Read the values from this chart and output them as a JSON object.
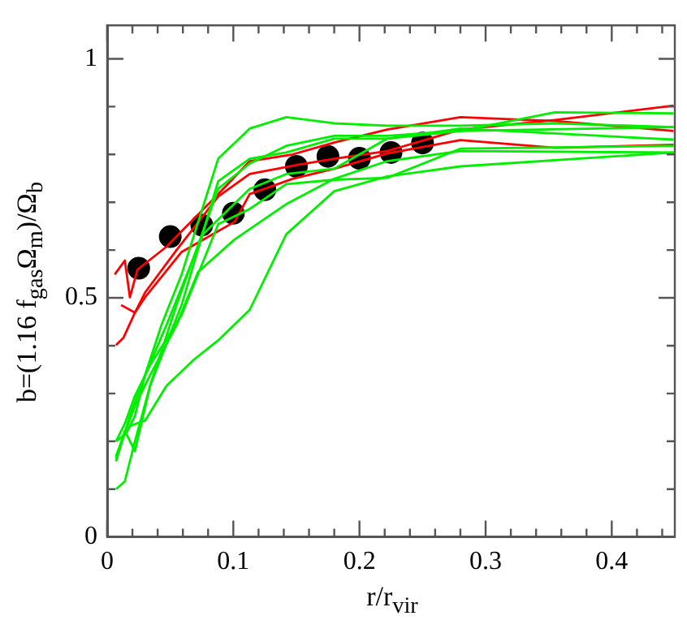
{
  "chart_data": {
    "type": "line",
    "xlabel": "r/r$_{vir}$",
    "ylabel": "b=(1.16 f$_{gas}$Ω$_{m}$)/Ω$_{b}$",
    "xlim": [
      0,
      0.45
    ],
    "ylim": [
      0,
      1.07
    ],
    "xticks": [
      0,
      {
        "value": 0.02,
        "label": null
      },
      {
        "value": 0.04,
        "label": null
      },
      {
        "value": 0.06,
        "label": null
      },
      {
        "value": 0.08,
        "label": null
      },
      0.1,
      {
        "value": 0.12,
        "label": null
      },
      {
        "value": 0.14,
        "label": null
      },
      {
        "value": 0.16,
        "label": null
      },
      {
        "value": 0.18,
        "label": null
      },
      0.2,
      {
        "value": 0.22,
        "label": null
      },
      {
        "value": 0.24,
        "label": null
      },
      {
        "value": 0.26,
        "label": null
      },
      {
        "value": 0.28,
        "label": null
      },
      0.3,
      {
        "value": 0.32,
        "label": null
      },
      {
        "value": 0.34,
        "label": null
      },
      {
        "value": 0.36,
        "label": null
      },
      {
        "value": 0.38,
        "label": null
      },
      0.4,
      {
        "value": 0.42,
        "label": null
      },
      {
        "value": 0.44,
        "label": null
      }
    ],
    "yticks": [
      0,
      {
        "value": 0.1,
        "label": null
      },
      {
        "value": 0.2,
        "label": null
      },
      {
        "value": 0.3,
        "label": null
      },
      {
        "value": 0.4,
        "label": null
      },
      0.5,
      {
        "value": 0.6,
        "label": null
      },
      {
        "value": 0.7,
        "label": null
      },
      {
        "value": 0.8,
        "label": null
      },
      {
        "value": 0.9,
        "label": null
      },
      1
    ],
    "marker": "none",
    "series": [
      {
        "color": "#00ee00",
        "x": [
          0.007,
          0.015,
          0.022,
          0.03,
          0.043,
          0.059,
          0.088,
          0.113,
          0.142,
          0.18,
          0.222,
          0.28,
          0.355,
          0.449
        ],
        "values": [
          0.2,
          0.216,
          0.253,
          0.338,
          0.443,
          0.549,
          0.791,
          0.854,
          0.878,
          0.865,
          0.86,
          0.86,
          0.865,
          0.857
        ]
      },
      {
        "color": "#00ee00",
        "x": [
          0.007,
          0.014,
          0.022,
          0.034,
          0.055,
          0.088,
          0.113,
          0.142,
          0.18,
          0.222,
          0.28,
          0.355,
          0.449
        ],
        "values": [
          0.164,
          0.222,
          0.179,
          0.316,
          0.485,
          0.728,
          0.781,
          0.818,
          0.839,
          0.839,
          0.849,
          0.888,
          0.886
        ]
      },
      {
        "color": "#00ee00",
        "x": [
          0.007,
          0.014,
          0.022,
          0.034,
          0.059,
          0.088,
          0.113,
          0.142,
          0.18,
          0.222,
          0.28,
          0.449
        ],
        "values": [
          0.1,
          0.116,
          0.2,
          0.316,
          0.485,
          0.744,
          0.791,
          0.804,
          0.833,
          0.833,
          0.849,
          0.857
        ]
      },
      {
        "color": "#00ee00",
        "x": [
          0.007,
          0.018,
          0.03,
          0.047,
          0.076,
          0.113,
          0.142,
          0.18,
          0.222,
          0.28,
          0.449
        ],
        "values": [
          0.158,
          0.253,
          0.338,
          0.443,
          0.633,
          0.728,
          0.759,
          0.77,
          0.833,
          0.854,
          0.831
        ]
      },
      {
        "color": "#00ee00",
        "x": [
          0.007,
          0.014,
          0.022,
          0.034,
          0.059,
          0.088,
          0.113,
          0.142,
          0.18,
          0.222,
          0.28,
          0.449
        ],
        "values": [
          0.2,
          0.237,
          0.295,
          0.359,
          0.464,
          0.654,
          0.686,
          0.738,
          0.747,
          0.751,
          0.812,
          0.818
        ]
      },
      {
        "color": "#00ee00",
        "x": [
          0.007,
          0.022,
          0.034,
          0.055,
          0.072,
          0.101,
          0.142,
          0.18,
          0.222,
          0.28,
          0.449
        ],
        "values": [
          0.169,
          0.274,
          0.338,
          0.443,
          0.554,
          0.622,
          0.696,
          0.749,
          0.786,
          0.807,
          0.804
        ]
      },
      {
        "color": "#00ee00",
        "x": [
          0.018,
          0.03,
          0.047,
          0.068,
          0.088,
          0.113,
          0.142,
          0.18,
          0.222,
          0.28,
          0.449
        ],
        "values": [
          0.232,
          0.243,
          0.316,
          0.369,
          0.411,
          0.475,
          0.633,
          0.723,
          0.754,
          0.775,
          0.804
        ]
      },
      {
        "color": "#ff0000",
        "x": [
          0.006,
          0.014,
          0.018,
          0.024,
          0.047,
          0.088,
          0.113,
          0.147,
          0.18,
          0.222,
          0.28,
          0.355,
          0.449
        ],
        "values": [
          0.549,
          0.578,
          0.501,
          0.559,
          0.607,
          0.717,
          0.786,
          0.8,
          0.825,
          0.852,
          0.878,
          0.87,
          0.849
        ]
      },
      {
        "color": "#ff0000",
        "x": [
          0.007,
          0.013,
          0.022,
          0.03,
          0.055,
          0.088,
          0.113,
          0.151,
          0.18,
          0.222,
          0.28,
          0.355,
          0.449
        ],
        "values": [
          0.401,
          0.417,
          0.469,
          0.511,
          0.6,
          0.712,
          0.759,
          0.778,
          0.791,
          0.807,
          0.852,
          0.872,
          0.902
        ]
      },
      {
        "color": "#ff0000",
        "x": [
          0.011,
          0.022,
          0.03,
          0.059,
          0.101,
          0.113,
          0.147,
          0.18,
          0.222,
          0.28,
          0.355,
          0.449
        ],
        "values": [
          0.485,
          0.469,
          0.501,
          0.596,
          0.659,
          0.717,
          0.749,
          0.77,
          0.802,
          0.83,
          0.814,
          0.82
        ]
      },
      {
        "type": "scatter",
        "marker": "circle",
        "color": "#000000",
        "x": [
          0.025,
          0.05,
          0.075,
          0.1,
          0.125,
          0.15,
          0.175,
          0.2,
          0.225,
          0.25
        ],
        "values": [
          0.562,
          0.628,
          0.652,
          0.677,
          0.726,
          0.775,
          0.796,
          0.792,
          0.804,
          0.824
        ]
      }
    ]
  }
}
